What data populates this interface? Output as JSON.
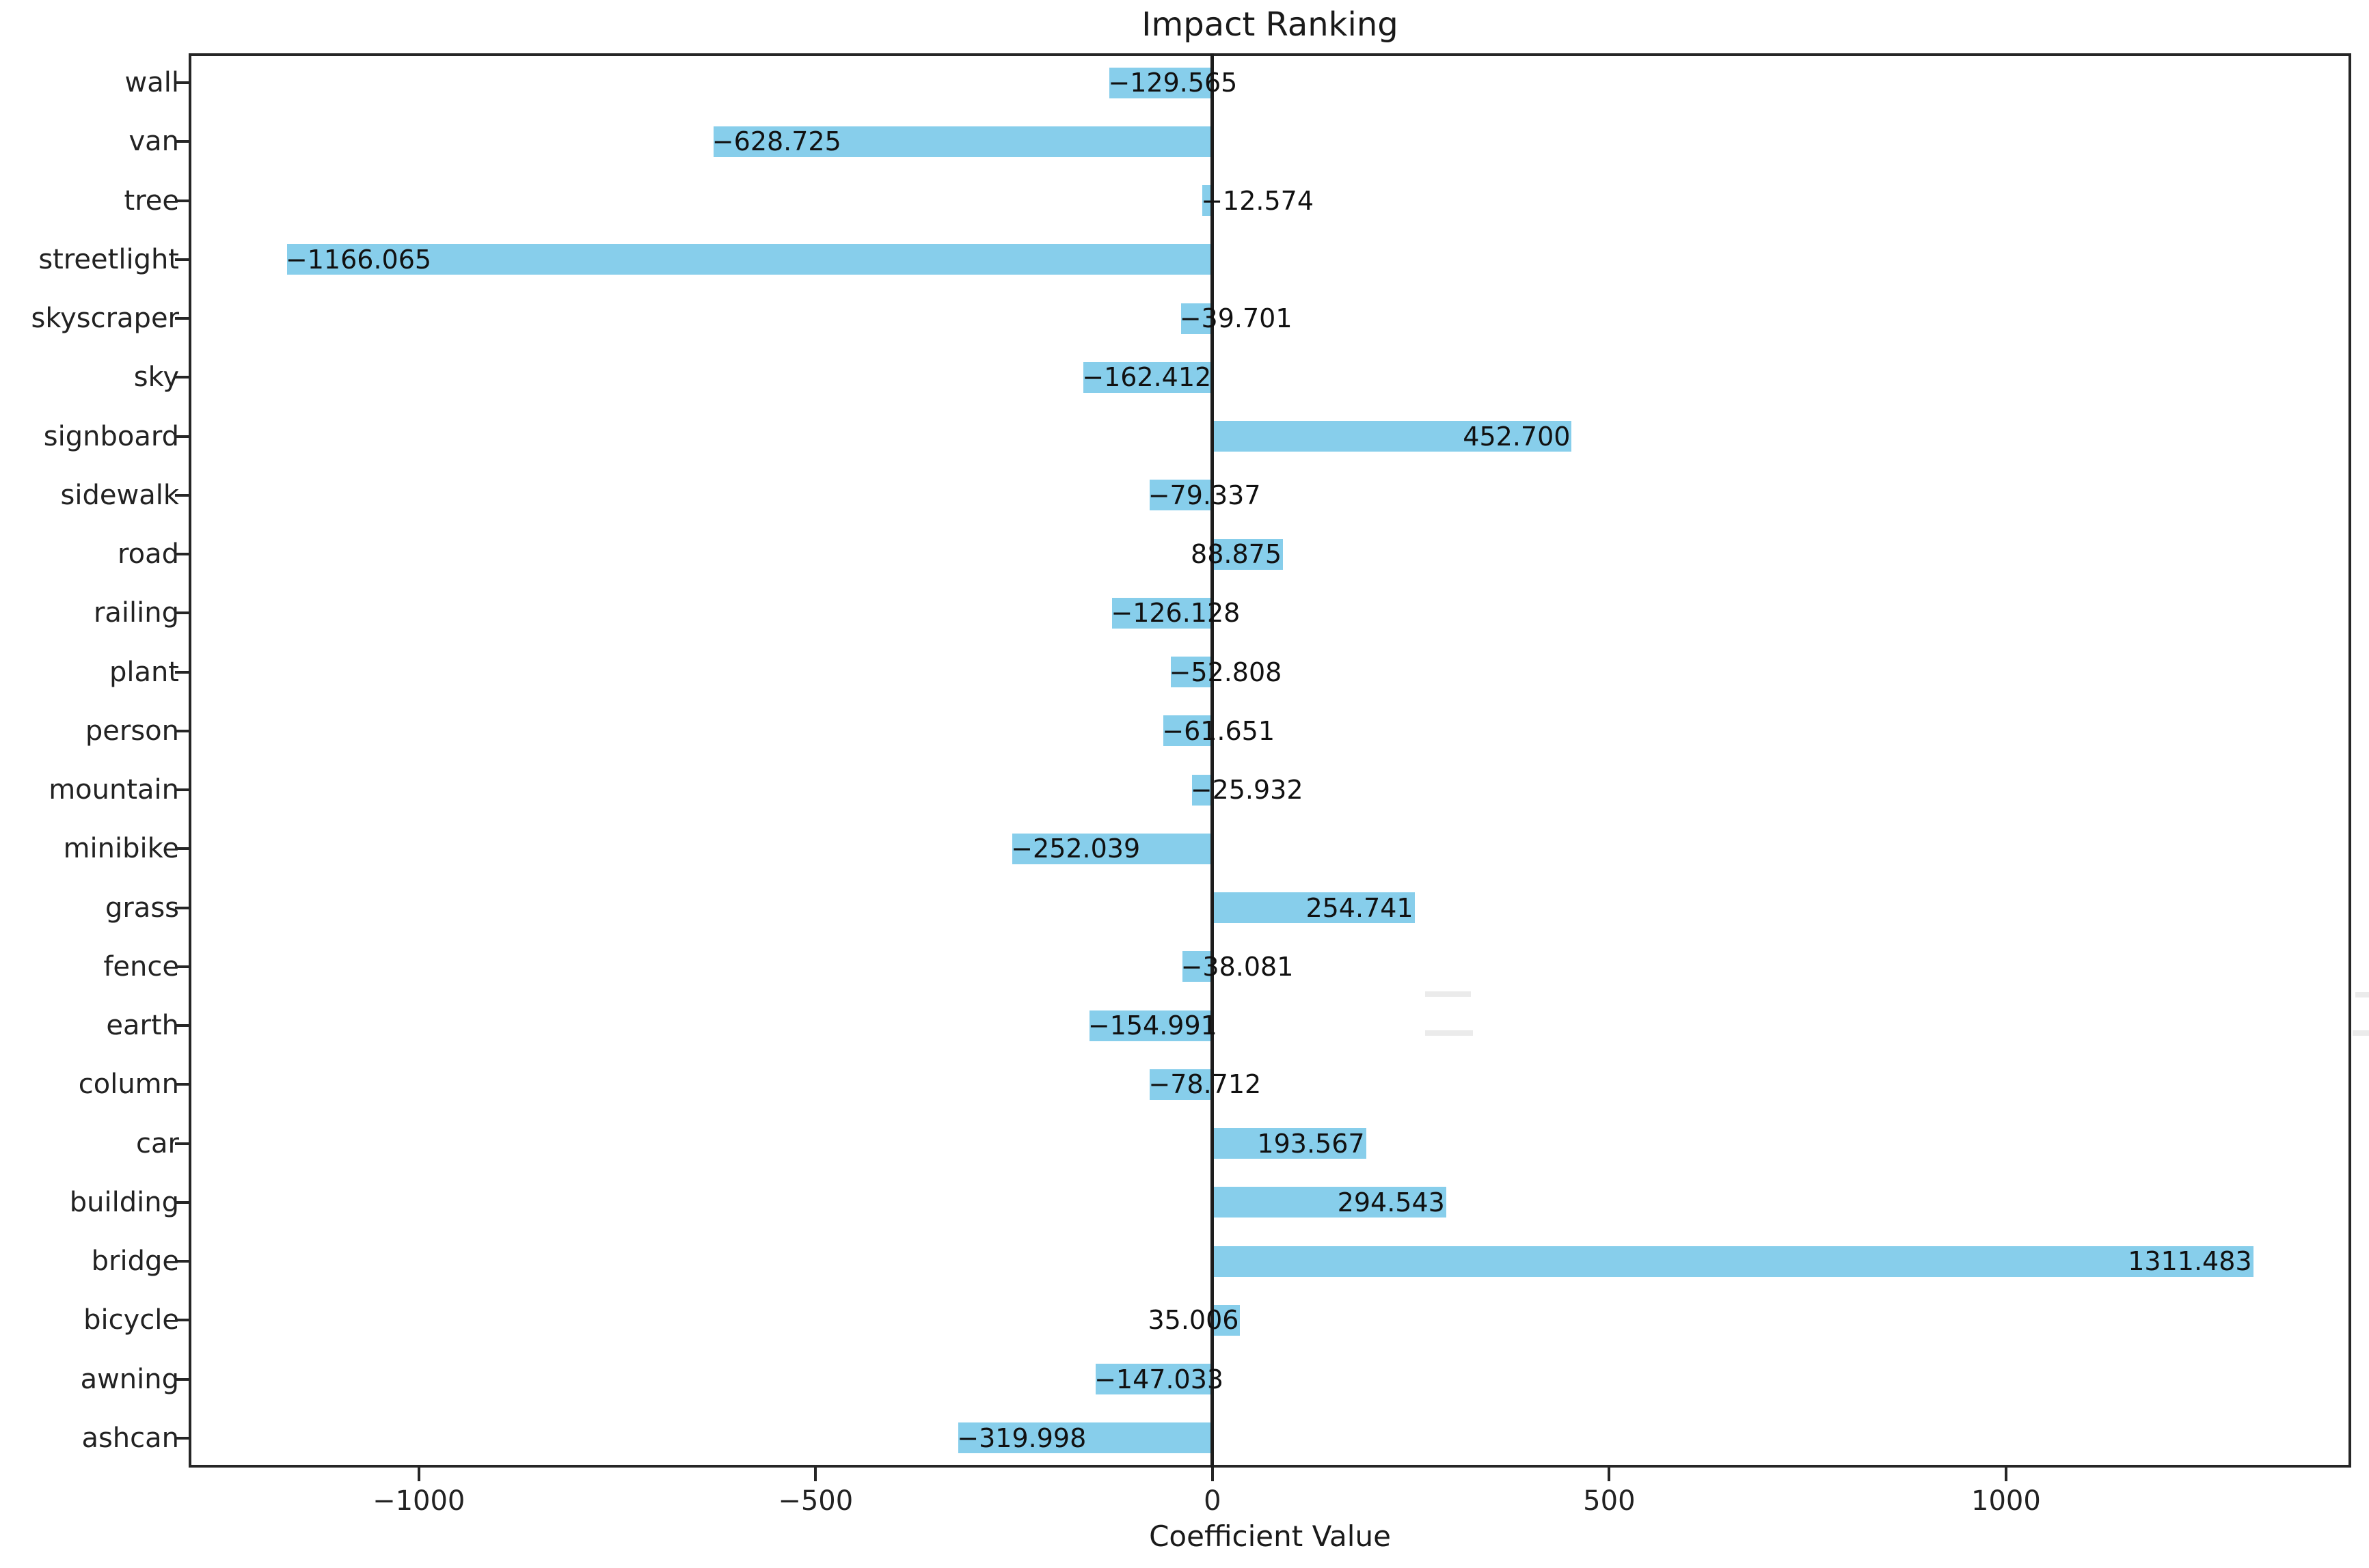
{
  "page": {
    "background": "#ffffff"
  },
  "chart_data": {
    "type": "bar",
    "orientation": "horizontal",
    "title": "Impact Ranking",
    "xlabel": "Coefficient Value",
    "ylabel": "",
    "grid": false,
    "legend": false,
    "bar_color": "#87CEEB",
    "zero_line": true,
    "xlim": [
      -1290,
      1435
    ],
    "xticks": [
      -1000,
      -500,
      0,
      500,
      1000
    ],
    "xtick_labels": [
      "−1000",
      "−500",
      "0",
      "500",
      "1000"
    ],
    "value_label_format": ".3f",
    "bars_top_to_bottom": [
      {
        "label": "wall",
        "value": -129.565,
        "value_label": "−129.565"
      },
      {
        "label": "van",
        "value": -628.725,
        "value_label": "−628.725"
      },
      {
        "label": "tree",
        "value": -12.574,
        "value_label": "−12.574"
      },
      {
        "label": "streetlight",
        "value": -1166.065,
        "value_label": "−1166.065"
      },
      {
        "label": "skyscraper",
        "value": -39.701,
        "value_label": "−39.701"
      },
      {
        "label": "sky",
        "value": -162.412,
        "value_label": "−162.412"
      },
      {
        "label": "signboard",
        "value": 452.7,
        "value_label": "452.700"
      },
      {
        "label": "sidewalk",
        "value": -79.337,
        "value_label": "−79.337"
      },
      {
        "label": "road",
        "value": 88.875,
        "value_label": "88.875"
      },
      {
        "label": "railing",
        "value": -126.128,
        "value_label": "−126.128"
      },
      {
        "label": "plant",
        "value": -52.808,
        "value_label": "−52.808"
      },
      {
        "label": "person",
        "value": -61.651,
        "value_label": "−61.651"
      },
      {
        "label": "mountain",
        "value": -25.932,
        "value_label": "−25.932"
      },
      {
        "label": "minibike",
        "value": -252.039,
        "value_label": "−252.039"
      },
      {
        "label": "grass",
        "value": 254.741,
        "value_label": "254.741"
      },
      {
        "label": "fence",
        "value": -38.081,
        "value_label": "−38.081"
      },
      {
        "label": "earth",
        "value": -154.991,
        "value_label": "−154.991"
      },
      {
        "label": "column",
        "value": -78.712,
        "value_label": "−78.712"
      },
      {
        "label": "car",
        "value": 193.567,
        "value_label": "193.567"
      },
      {
        "label": "building",
        "value": 294.543,
        "value_label": "294.543"
      },
      {
        "label": "bridge",
        "value": 1311.483,
        "value_label": "1311.483"
      },
      {
        "label": "bicycle",
        "value": 35.006,
        "value_label": "35.006"
      },
      {
        "label": "awning",
        "value": -147.033,
        "value_label": "−147.033"
      },
      {
        "label": "ashcan",
        "value": -319.998,
        "value_label": "−319.998"
      }
    ]
  }
}
